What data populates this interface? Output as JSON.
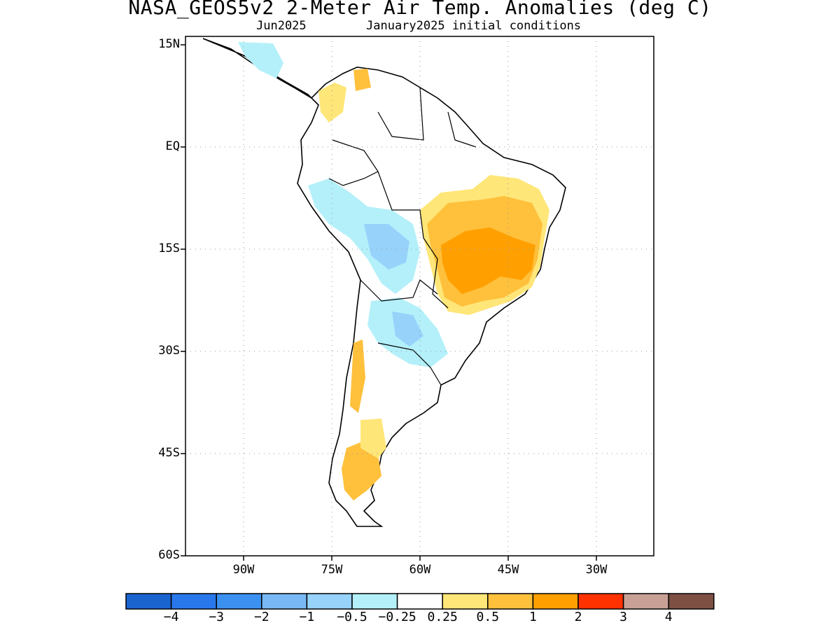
{
  "title": "NASA_GEOS5v2 2-Meter Air Temp. Anomalies (deg C)",
  "subtitle_left": "Jun2025",
  "subtitle_right": "January2025 initial conditions",
  "map": {
    "lat_labels": [
      "15N",
      "EQ",
      "15S",
      "30S",
      "45S",
      "60S"
    ],
    "lon_labels": [
      "90W",
      "75W",
      "60W",
      "45W",
      "30W"
    ],
    "gridlines": "dotted"
  },
  "colorbar": {
    "colors": [
      "#1a64d0",
      "#2878eb",
      "#3c91f0",
      "#78b9f5",
      "#96d2fa",
      "#b4f0fa",
      "#ffffff",
      "#ffe678",
      "#ffc03c",
      "#ffa000",
      "#ff3200",
      "#c8a096",
      "#7d5043"
    ],
    "labels": [
      "−4",
      "−3",
      "−2",
      "−1",
      "−0.5",
      "−0.25",
      "0.25",
      "0.5",
      "1",
      "2",
      "3",
      "4"
    ]
  }
}
